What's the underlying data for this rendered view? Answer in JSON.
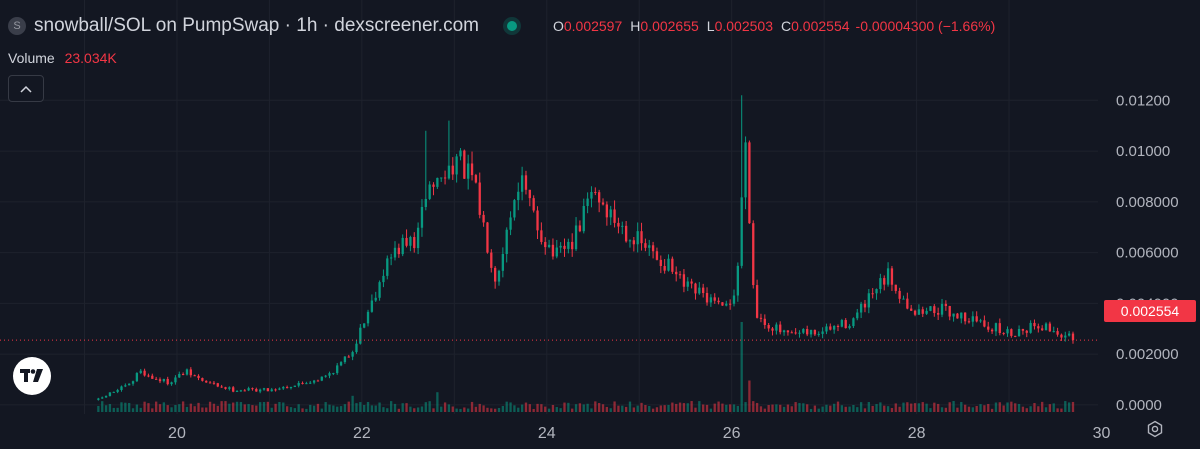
{
  "header": {
    "symbol_badge": "S",
    "title": "snowball/SOL on PumpSwap · 1h · dexscreener.com",
    "ohlc": {
      "o_label": "O",
      "o_value": "0.002597",
      "h_label": "H",
      "h_value": "0.002655",
      "l_label": "L",
      "l_value": "0.002503",
      "c_label": "C",
      "c_value": "0.002554",
      "change": "-0.00004300 (−1.66%)"
    }
  },
  "volume": {
    "label": "Volume",
    "value": "23.034K"
  },
  "price_badge": "0.002554",
  "colors": {
    "background": "#131722",
    "up": "#089981",
    "down": "#f23645",
    "grid": "#1e222d",
    "axis_text": "#b2b5be"
  },
  "icons": {
    "collapse": "chevron-up-icon",
    "logo": "tradingview-logo-icon",
    "settings": "gear-icon",
    "live": "live-dot-icon"
  },
  "chart_data": {
    "type": "candlestick",
    "interval": "1h",
    "x_ticks": [
      "20",
      "22",
      "24",
      "26",
      "28",
      "30"
    ],
    "y_ticks": [
      "0.0000",
      "0.002000",
      "0.004000",
      "0.006000",
      "0.008000",
      "0.01000",
      "0.01200"
    ],
    "ylim": [
      -0.0002,
      0.0128
    ],
    "last_price": 0.002554,
    "grid": true,
    "volume_pane": true,
    "price_path": [
      [
        19.15,
        0.0002
      ],
      [
        19.3,
        0.0005
      ],
      [
        19.5,
        0.0008
      ],
      [
        19.6,
        0.0014
      ],
      [
        19.7,
        0.0011
      ],
      [
        19.9,
        0.0009
      ],
      [
        20.0,
        0.0011
      ],
      [
        20.1,
        0.0013
      ],
      [
        20.3,
        0.0009
      ],
      [
        20.6,
        0.0006
      ],
      [
        21.0,
        0.0006
      ],
      [
        21.3,
        0.0008
      ],
      [
        21.6,
        0.0011
      ],
      [
        21.8,
        0.0017
      ],
      [
        21.9,
        0.0022
      ],
      [
        22.1,
        0.004
      ],
      [
        22.25,
        0.0055
      ],
      [
        22.4,
        0.0062
      ],
      [
        22.6,
        0.0065
      ],
      [
        22.7,
        0.0085
      ],
      [
        22.9,
        0.009
      ],
      [
        23.0,
        0.0098
      ],
      [
        23.2,
        0.0088
      ],
      [
        23.45,
        0.005
      ],
      [
        23.7,
        0.009
      ],
      [
        23.9,
        0.007
      ],
      [
        24.1,
        0.0058
      ],
      [
        24.3,
        0.0065
      ],
      [
        24.5,
        0.0085
      ],
      [
        24.7,
        0.0074
      ],
      [
        25.0,
        0.0064
      ],
      [
        25.3,
        0.0055
      ],
      [
        25.5,
        0.0046
      ],
      [
        25.7,
        0.0043
      ],
      [
        25.9,
        0.0037
      ],
      [
        26.05,
        0.0045
      ],
      [
        26.15,
        0.0105
      ],
      [
        26.25,
        0.0036
      ],
      [
        26.4,
        0.0032
      ],
      [
        26.6,
        0.0027
      ],
      [
        27.0,
        0.0029
      ],
      [
        27.3,
        0.0033
      ],
      [
        27.5,
        0.0042
      ],
      [
        27.7,
        0.0051
      ],
      [
        27.85,
        0.0042
      ],
      [
        28.0,
        0.0036
      ],
      [
        28.2,
        0.0038
      ],
      [
        28.5,
        0.0035
      ],
      [
        28.8,
        0.0031
      ],
      [
        29.0,
        0.0028
      ],
      [
        29.3,
        0.0032
      ],
      [
        29.5,
        0.0029
      ],
      [
        29.7,
        0.002554
      ]
    ],
    "spikes": [
      {
        "x": 22.7,
        "high": 0.0108
      },
      {
        "x": 22.95,
        "high": 0.0112
      },
      {
        "x": 26.1,
        "high": 0.0122
      }
    ],
    "volume_spikes": [
      {
        "x": 21.9,
        "value": 18
      },
      {
        "x": 22.8,
        "value": 22
      },
      {
        "x": 26.1,
        "value": 100
      },
      {
        "x": 26.2,
        "value": 35
      }
    ]
  }
}
